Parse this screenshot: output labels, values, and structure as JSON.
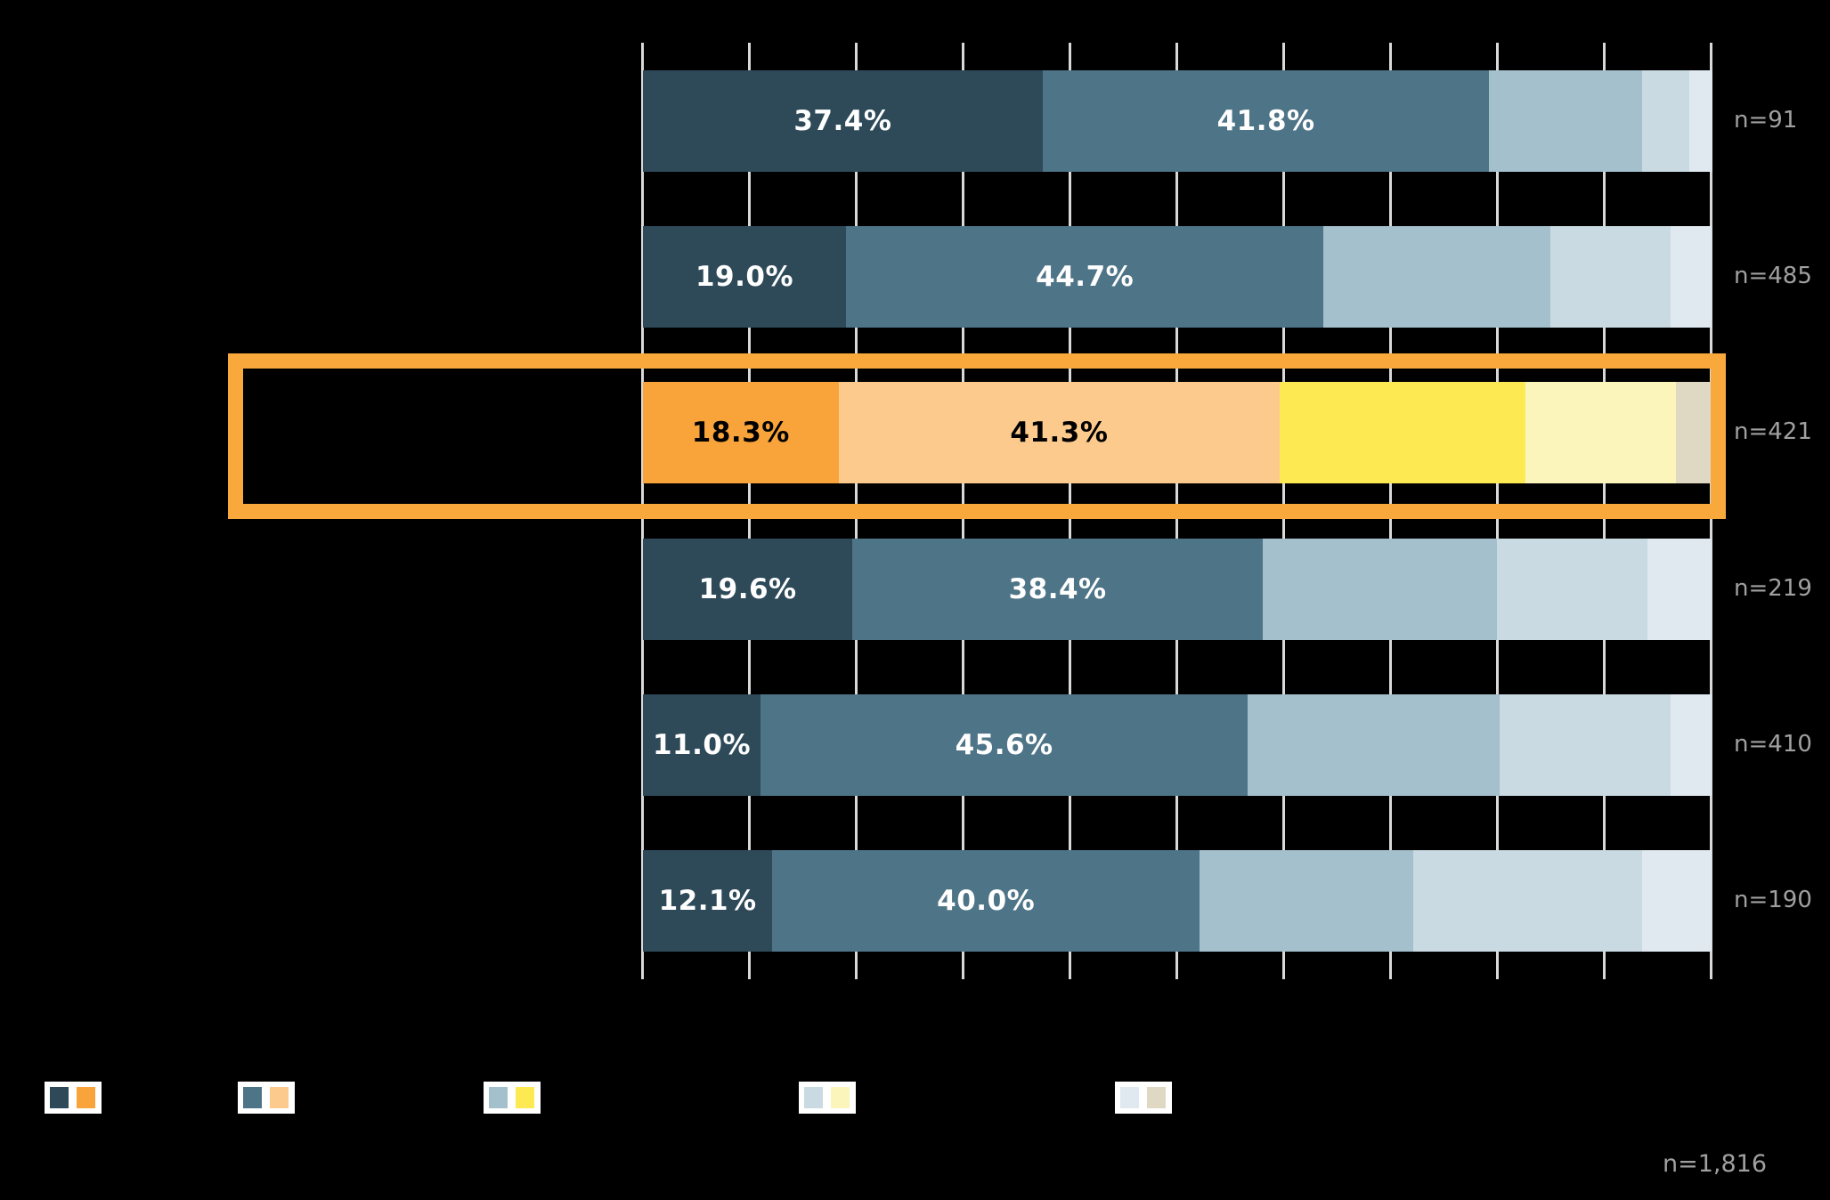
{
  "chart_data": {
    "type": "bar",
    "variant": "horizontal-stacked-100pct",
    "title": "",
    "axis": {
      "min_pct": 0,
      "max_pct": 100,
      "gridline_step_pct": 10,
      "tick_labels_visible": false,
      "category_labels_visible": false
    },
    "segments_per_row": 5,
    "rows": [
      {
        "sample_label": "n=91",
        "values_pct": [
          37.4,
          41.8,
          14.3,
          4.4,
          2.2
        ],
        "visible_value_labels": [
          "37.4%",
          "41.8%"
        ],
        "highlighted": false
      },
      {
        "sample_label": "n=485",
        "values_pct": [
          19.0,
          44.7,
          21.2,
          11.3,
          3.8
        ],
        "visible_value_labels": [
          "19.0%",
          "44.7%"
        ],
        "highlighted": false
      },
      {
        "sample_label": "n=421",
        "values_pct": [
          18.3,
          41.3,
          23.0,
          14.1,
          3.3
        ],
        "visible_value_labels": [
          "18.3%",
          "41.3%"
        ],
        "highlighted": true
      },
      {
        "sample_label": "n=219",
        "values_pct": [
          19.6,
          38.4,
          21.9,
          14.1,
          6.0
        ],
        "visible_value_labels": [
          "19.6%",
          "38.4%"
        ],
        "highlighted": false
      },
      {
        "sample_label": "n=410",
        "values_pct": [
          11.0,
          45.6,
          23.6,
          16.0,
          3.8
        ],
        "visible_value_labels": [
          "11.0%",
          "45.6%"
        ],
        "highlighted": false
      },
      {
        "sample_label": "n=190",
        "values_pct": [
          12.1,
          40.0,
          20.0,
          21.4,
          6.5
        ],
        "visible_value_labels": [
          "12.1%",
          "40.0%"
        ],
        "highlighted": false
      }
    ],
    "total_label": "n=1,816",
    "legend": {
      "labels_visible": false,
      "item_count": 5
    }
  },
  "colors": {
    "background": "#000000",
    "gridline": "#d9d9d9",
    "sample_label_text": "#a0a0a0",
    "value_label_on_blue": "#ffffff",
    "value_label_on_orange": "#000000",
    "highlight_border": "#f9a83c",
    "blue_palette": [
      "#2e4a59",
      "#4e7487",
      "#a4c0cd",
      "#c9dae2",
      "#e0e9ef"
    ],
    "orange_palette": [
      "#f9a43a",
      "#fcca8c",
      "#fdea52",
      "#fcf5bb",
      "#dfd8c3"
    ]
  }
}
